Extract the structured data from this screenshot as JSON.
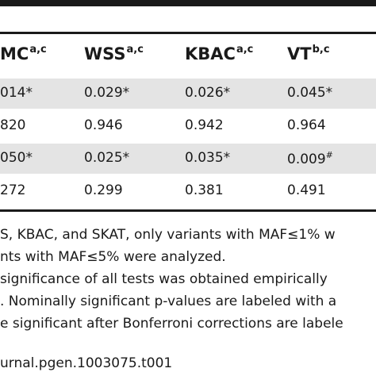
{
  "table": {
    "columns": [
      {
        "name": "MC",
        "sup": "a,c"
      },
      {
        "name": "WSS",
        "sup": "a,c"
      },
      {
        "name": "KBAC",
        "sup": "a,c"
      },
      {
        "name": "VT",
        "sup": "b,c"
      }
    ],
    "rows": [
      {
        "cells": [
          "014*",
          "0.029*",
          "0.026*",
          "0.045*"
        ],
        "vt_sup": ""
      },
      {
        "cells": [
          "820",
          "0.946",
          "0.942",
          "0.964"
        ],
        "vt_sup": ""
      },
      {
        "cells": [
          "050*",
          "0.025*",
          "0.035*",
          "0.009"
        ],
        "vt_sup": "#"
      },
      {
        "cells": [
          "272",
          "0.299",
          "0.381",
          "0.491"
        ],
        "vt_sup": ""
      }
    ]
  },
  "footnotes": [
    "S, KBAC, and SKAT, only variants with MAF≤1% w",
    "nts with MAF≤5% were analyzed.",
    " significance of all tests was obtained empirically",
    ". Nominally significant p-values are labeled with a",
    "e significant after Bonferroni corrections are labele"
  ],
  "doi_fragment": "urnal.pgen.1003075.t001"
}
